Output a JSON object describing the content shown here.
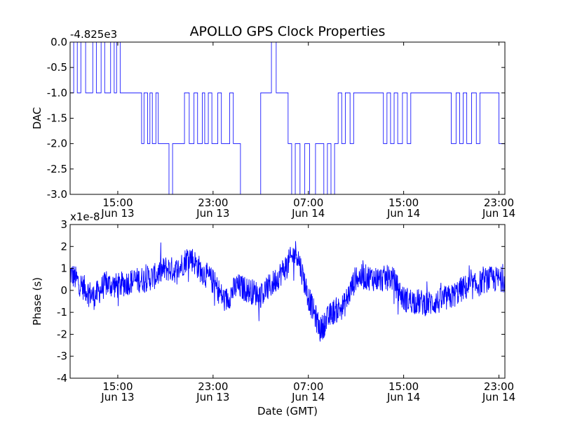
{
  "title": "APOLLO GPS Clock Properties",
  "colors": {
    "line": "#0000ff",
    "axes": "#000000",
    "background": "#ffffff"
  },
  "chart_data": [
    {
      "type": "line",
      "ylabel": "DAC",
      "xlabel": "",
      "offset_text": "-4.825e3",
      "x_range": [
        "2013-06-13 11:00",
        "2013-06-14 23:30"
      ],
      "xlim_hours": [
        0,
        36.5
      ],
      "ylim": [
        -3.0,
        0.0
      ],
      "y_ticks": [
        "0.0",
        "-0.5",
        "-1.0",
        "-1.5",
        "-2.0",
        "-2.5",
        "-3.0"
      ],
      "x_ticks": [
        {
          "hour": 4,
          "time": "15:00",
          "date": "Jun 13"
        },
        {
          "hour": 12,
          "time": "23:00",
          "date": "Jun 13"
        },
        {
          "hour": 20,
          "time": "07:00",
          "date": "Jun 14"
        },
        {
          "hour": 28,
          "time": "15:00",
          "date": "Jun 14"
        },
        {
          "hour": 36,
          "time": "23:00",
          "date": "Jun 14"
        }
      ],
      "series": [
        {
          "x_hours": [
            0,
            0.3,
            0.6,
            0.9,
            1.3,
            1.9,
            2.2,
            2.6,
            2.9,
            3.4,
            3.7,
            3.9,
            4.2,
            4.6,
            5.1,
            5.6,
            6.0,
            6.2,
            6.5,
            6.7,
            6.9,
            7.2,
            7.4,
            7.8,
            8.1,
            8.3,
            8.6,
            9.0,
            9.3,
            9.6,
            10.0,
            10.4,
            10.7,
            11.1,
            11.3,
            11.6,
            11.9,
            12.4,
            12.7,
            13.1,
            13.4,
            13.7,
            14.0,
            14.3,
            14.6,
            14.9,
            15.3,
            15.6,
            16.0,
            16.3,
            16.6,
            16.9,
            17.3,
            17.6,
            18.0,
            18.3,
            18.6,
            18.9,
            19.3,
            19.7,
            20.1,
            20.6,
            21.0,
            21.3,
            21.6,
            21.9,
            22.2,
            22.5,
            22.8,
            23.1,
            23.5,
            23.8,
            24.1,
            24.4,
            24.7,
            25.0,
            25.3,
            25.7,
            26.0,
            26.3,
            26.6,
            26.9,
            27.2,
            27.5,
            27.9,
            28.3,
            28.6,
            29.0,
            29.4,
            29.7,
            30.0,
            30.3,
            30.6,
            30.9,
            31.2,
            31.6,
            32.0,
            32.4,
            32.7,
            33.0,
            33.3,
            33.7,
            34.1,
            34.4,
            34.7,
            35.0,
            35.4,
            35.7,
            36.0,
            36.3,
            36.5
          ],
          "values": [
            -1,
            0,
            -1,
            0,
            -1,
            0,
            -1,
            0,
            -1,
            0,
            -1,
            0,
            -1,
            -1,
            -1,
            -1,
            -2,
            -1,
            -2,
            -1,
            -2,
            -1,
            -2,
            -2,
            -2,
            -3,
            -2,
            -2,
            -2,
            -1,
            -2,
            -1,
            -2,
            -1,
            -2,
            -1,
            -2,
            -1,
            -2,
            -2,
            -1,
            -2,
            -2,
            -3,
            -3,
            -3,
            -3,
            -3,
            -1,
            -1,
            -1,
            0,
            -1,
            -1,
            -1,
            -2,
            -3,
            -2,
            -3,
            -2,
            -3,
            -2,
            -2,
            -3,
            -2,
            -3,
            -2,
            -1,
            -2,
            -1,
            -2,
            -1,
            -1,
            -1,
            -1,
            -1,
            -1,
            -1,
            -1,
            -2,
            -1,
            -2,
            -1,
            -2,
            -1,
            -2,
            -1,
            -1,
            -1,
            -1,
            -1,
            -1,
            -1,
            -1,
            -1,
            -1,
            -2,
            -1,
            -2,
            -1,
            -2,
            -1,
            -2,
            -1,
            -1,
            -1,
            -1,
            -1,
            -2,
            -2,
            -2
          ]
        }
      ]
    },
    {
      "type": "line",
      "ylabel": "Phase (s)",
      "xlabel": "Date (GMT)",
      "offset_text": "x1e-8",
      "x_range": [
        "2013-06-13 11:00",
        "2013-06-14 23:30"
      ],
      "xlim_hours": [
        0,
        36.5
      ],
      "ylim": [
        -4,
        3
      ],
      "y_ticks": [
        "3",
        "2",
        "1",
        "0",
        "-1",
        "-2",
        "-3",
        "-4"
      ],
      "x_ticks": [
        {
          "hour": 4,
          "time": "15:00",
          "date": "Jun 13"
        },
        {
          "hour": 12,
          "time": "23:00",
          "date": "Jun 13"
        },
        {
          "hour": 20,
          "time": "07:00",
          "date": "Jun 14"
        },
        {
          "hour": 28,
          "time": "15:00",
          "date": "Jun 14"
        },
        {
          "hour": 36,
          "time": "23:00",
          "date": "Jun 14"
        }
      ],
      "series": [
        {
          "x_hours": [
            0,
            1,
            2,
            3,
            4,
            5,
            6,
            7,
            8,
            9,
            10,
            11,
            12,
            13,
            14,
            15,
            16,
            17,
            18,
            19,
            20,
            21,
            22,
            23,
            24,
            25,
            26,
            27,
            28,
            29,
            30,
            31,
            32,
            33,
            34,
            35,
            36,
            36.5
          ],
          "values": [
            0.8,
            0.2,
            -0.3,
            0.3,
            0.2,
            0.4,
            0.5,
            0.6,
            1.0,
            0.9,
            1.6,
            0.9,
            0.4,
            -0.5,
            0.2,
            0.0,
            -0.2,
            0.3,
            1.0,
            1.8,
            -0.3,
            -1.8,
            -1.0,
            -0.7,
            0.6,
            0.6,
            0.5,
            0.6,
            -0.4,
            -0.5,
            -0.6,
            -0.5,
            -0.3,
            0.1,
            0.2,
            0.5,
            0.5,
            0.5
          ]
        }
      ]
    }
  ]
}
